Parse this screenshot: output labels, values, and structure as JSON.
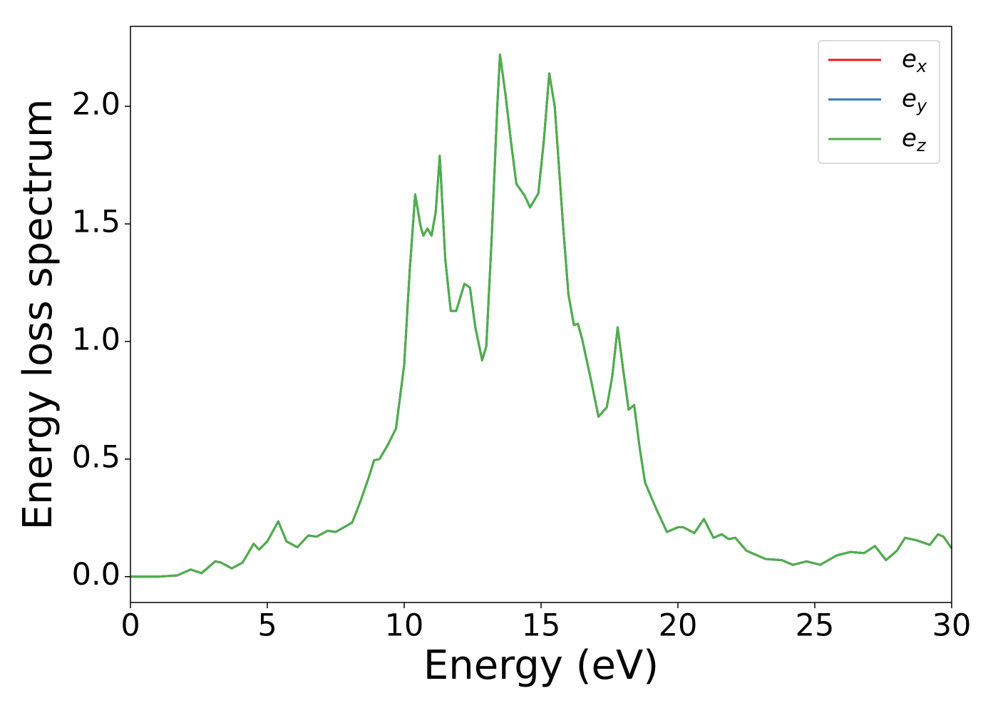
{
  "chart_data": {
    "type": "line",
    "xlabel": "Energy (eV)",
    "ylabel": "Energy loss spectrum",
    "x": [
      0,
      1,
      1.7,
      2.2,
      2.6,
      3.1,
      3.3,
      3.7,
      4.1,
      4.5,
      4.7,
      5.0,
      5.4,
      5.7,
      6.1,
      6.5,
      6.8,
      7.2,
      7.5,
      7.8,
      8.1,
      8.4,
      8.7,
      8.9,
      9.1,
      9.4,
      9.7,
      10.0,
      10.2,
      10.4,
      10.6,
      10.7,
      10.85,
      11.0,
      11.15,
      11.3,
      11.5,
      11.7,
      11.9,
      12.2,
      12.4,
      12.6,
      12.85,
      13.0,
      13.2,
      13.4,
      13.5,
      13.7,
      13.9,
      14.1,
      14.4,
      14.6,
      14.9,
      15.1,
      15.3,
      15.5,
      15.8,
      16.0,
      16.2,
      16.35,
      16.5,
      16.8,
      17.1,
      17.4,
      17.6,
      17.8,
      18.0,
      18.2,
      18.4,
      18.6,
      18.8,
      19.2,
      19.6,
      20.0,
      20.2,
      20.6,
      20.95,
      21.3,
      21.6,
      21.85,
      22.1,
      22.5,
      23.2,
      23.8,
      24.2,
      24.7,
      25.2,
      25.8,
      26.3,
      26.8,
      27.2,
      27.6,
      28.0,
      28.3,
      28.7,
      29.2,
      29.5,
      29.7,
      30.0
    ],
    "series": [
      {
        "name": "e_x",
        "color": "#e41a1c",
        "values": [
          0,
          0,
          0.005,
          0.03,
          0.015,
          0.065,
          0.06,
          0.035,
          0.06,
          0.14,
          0.115,
          0.15,
          0.235,
          0.15,
          0.125,
          0.175,
          0.17,
          0.195,
          0.19,
          0.21,
          0.23,
          0.32,
          0.42,
          0.495,
          0.5,
          0.56,
          0.63,
          0.9,
          1.3,
          1.625,
          1.49,
          1.45,
          1.48,
          1.45,
          1.55,
          1.79,
          1.35,
          1.13,
          1.13,
          1.245,
          1.23,
          1.06,
          0.92,
          0.98,
          1.45,
          2.0,
          2.22,
          2.05,
          1.85,
          1.67,
          1.62,
          1.57,
          1.63,
          1.85,
          2.14,
          2.0,
          1.5,
          1.2,
          1.07,
          1.075,
          1.01,
          0.85,
          0.68,
          0.72,
          0.85,
          1.06,
          0.88,
          0.71,
          0.73,
          0.55,
          0.4,
          0.29,
          0.19,
          0.21,
          0.21,
          0.185,
          0.245,
          0.165,
          0.18,
          0.16,
          0.165,
          0.11,
          0.075,
          0.07,
          0.05,
          0.065,
          0.05,
          0.09,
          0.105,
          0.1,
          0.13,
          0.07,
          0.11,
          0.165,
          0.155,
          0.135,
          0.18,
          0.17,
          0.12
        ]
      },
      {
        "name": "e_y",
        "color": "#377eb8",
        "values": [
          0,
          0,
          0.005,
          0.03,
          0.015,
          0.065,
          0.06,
          0.035,
          0.06,
          0.14,
          0.115,
          0.15,
          0.235,
          0.15,
          0.125,
          0.175,
          0.17,
          0.195,
          0.19,
          0.21,
          0.23,
          0.32,
          0.42,
          0.495,
          0.5,
          0.56,
          0.63,
          0.9,
          1.3,
          1.625,
          1.49,
          1.45,
          1.48,
          1.45,
          1.55,
          1.79,
          1.35,
          1.13,
          1.13,
          1.245,
          1.23,
          1.06,
          0.92,
          0.98,
          1.45,
          2.0,
          2.22,
          2.05,
          1.85,
          1.67,
          1.62,
          1.57,
          1.63,
          1.85,
          2.14,
          2.0,
          1.5,
          1.2,
          1.07,
          1.075,
          1.01,
          0.85,
          0.68,
          0.72,
          0.85,
          1.06,
          0.88,
          0.71,
          0.73,
          0.55,
          0.4,
          0.29,
          0.19,
          0.21,
          0.21,
          0.185,
          0.245,
          0.165,
          0.18,
          0.16,
          0.165,
          0.11,
          0.075,
          0.07,
          0.05,
          0.065,
          0.05,
          0.09,
          0.105,
          0.1,
          0.13,
          0.07,
          0.11,
          0.165,
          0.155,
          0.135,
          0.18,
          0.17,
          0.12
        ]
      },
      {
        "name": "e_z",
        "color": "#4daf4a",
        "values": [
          0,
          0,
          0.005,
          0.03,
          0.015,
          0.065,
          0.06,
          0.035,
          0.06,
          0.14,
          0.115,
          0.15,
          0.235,
          0.15,
          0.125,
          0.175,
          0.17,
          0.195,
          0.19,
          0.21,
          0.23,
          0.32,
          0.42,
          0.495,
          0.5,
          0.56,
          0.63,
          0.9,
          1.3,
          1.625,
          1.49,
          1.45,
          1.48,
          1.45,
          1.55,
          1.79,
          1.35,
          1.13,
          1.13,
          1.245,
          1.23,
          1.06,
          0.92,
          0.98,
          1.45,
          2.0,
          2.22,
          2.05,
          1.85,
          1.67,
          1.62,
          1.57,
          1.63,
          1.85,
          2.14,
          2.0,
          1.5,
          1.2,
          1.07,
          1.075,
          1.01,
          0.85,
          0.68,
          0.72,
          0.85,
          1.06,
          0.88,
          0.71,
          0.73,
          0.55,
          0.4,
          0.29,
          0.19,
          0.21,
          0.21,
          0.185,
          0.245,
          0.165,
          0.18,
          0.16,
          0.165,
          0.11,
          0.075,
          0.07,
          0.05,
          0.065,
          0.05,
          0.09,
          0.105,
          0.1,
          0.13,
          0.07,
          0.11,
          0.165,
          0.155,
          0.135,
          0.18,
          0.17,
          0.12
        ]
      }
    ],
    "xlim": [
      0,
      30
    ],
    "xticks": [
      0,
      5,
      10,
      15,
      20,
      25,
      30
    ],
    "ylim": [
      -0.11,
      2.34
    ],
    "yticks": [
      {
        "value": 0,
        "label": "0.0"
      },
      0.5,
      {
        "value": 1,
        "label": "1.0"
      },
      1.5,
      {
        "value": 2,
        "label": "2.0"
      }
    ],
    "grid": false,
    "legend": "upper right"
  }
}
